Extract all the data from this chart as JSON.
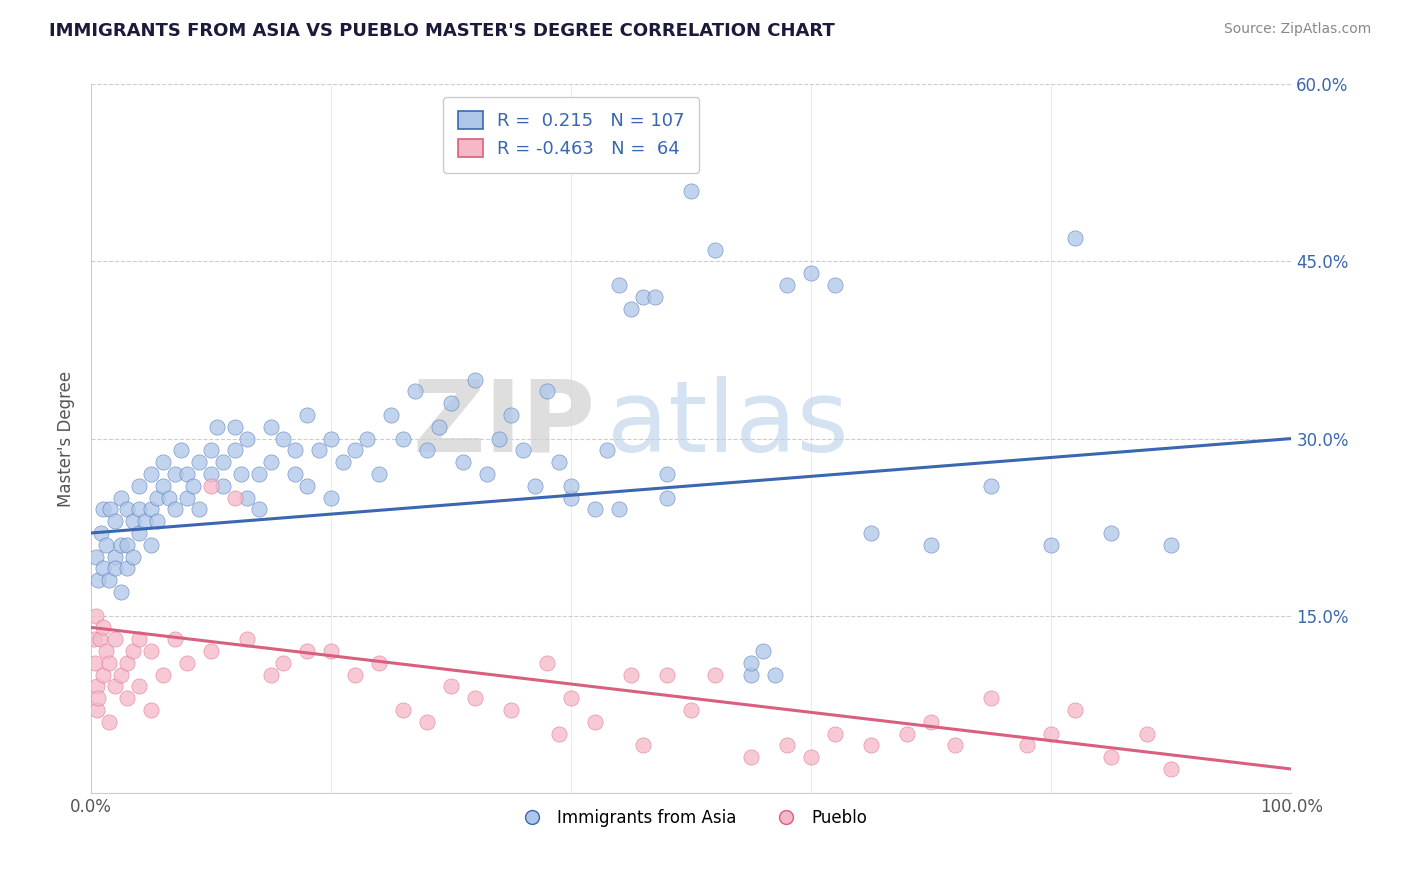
{
  "title": "IMMIGRANTS FROM ASIA VS PUEBLO MASTER'S DEGREE CORRELATION CHART",
  "source": "Source: ZipAtlas.com",
  "ylabel": "Master's Degree",
  "xlim": [
    0,
    100
  ],
  "ylim": [
    0,
    60
  ],
  "blue_r": 0.215,
  "blue_n": 107,
  "pink_r": -0.463,
  "pink_n": 64,
  "blue_color": "#aec6e8",
  "pink_color": "#f5b8c8",
  "blue_line_color": "#3a67b0",
  "pink_line_color": "#d95f7f",
  "blue_trend_start": 22.0,
  "blue_trend_end": 30.0,
  "pink_trend_start": 14.0,
  "pink_trend_end": 2.0,
  "blue_scatter": [
    [
      0.4,
      20
    ],
    [
      0.6,
      18
    ],
    [
      0.8,
      22
    ],
    [
      1.0,
      24
    ],
    [
      1.0,
      19
    ],
    [
      1.2,
      21
    ],
    [
      1.5,
      18
    ],
    [
      1.6,
      24
    ],
    [
      2.0,
      20
    ],
    [
      2.0,
      23
    ],
    [
      2.0,
      19
    ],
    [
      2.5,
      17
    ],
    [
      2.5,
      21
    ],
    [
      2.5,
      25
    ],
    [
      3.0,
      19
    ],
    [
      3.0,
      24
    ],
    [
      3.0,
      21
    ],
    [
      3.5,
      23
    ],
    [
      3.5,
      20
    ],
    [
      4.0,
      22
    ],
    [
      4.0,
      26
    ],
    [
      4.0,
      24
    ],
    [
      4.5,
      23
    ],
    [
      5.0,
      21
    ],
    [
      5.0,
      27
    ],
    [
      5.0,
      24
    ],
    [
      5.5,
      25
    ],
    [
      5.5,
      23
    ],
    [
      6.0,
      26
    ],
    [
      6.0,
      28
    ],
    [
      6.5,
      25
    ],
    [
      7.0,
      27
    ],
    [
      7.0,
      24
    ],
    [
      7.5,
      29
    ],
    [
      8.0,
      27
    ],
    [
      8.0,
      25
    ],
    [
      8.5,
      26
    ],
    [
      9.0,
      28
    ],
    [
      9.0,
      24
    ],
    [
      10.0,
      27
    ],
    [
      10.0,
      29
    ],
    [
      10.5,
      31
    ],
    [
      11.0,
      26
    ],
    [
      11.0,
      28
    ],
    [
      12.0,
      29
    ],
    [
      12.0,
      31
    ],
    [
      12.5,
      27
    ],
    [
      13.0,
      25
    ],
    [
      13.0,
      30
    ],
    [
      14.0,
      27
    ],
    [
      14.0,
      24
    ],
    [
      15.0,
      28
    ],
    [
      15.0,
      31
    ],
    [
      16.0,
      30
    ],
    [
      17.0,
      29
    ],
    [
      17.0,
      27
    ],
    [
      18.0,
      26
    ],
    [
      18.0,
      32
    ],
    [
      19.0,
      29
    ],
    [
      20.0,
      30
    ],
    [
      20.0,
      25
    ],
    [
      21.0,
      28
    ],
    [
      22.0,
      29
    ],
    [
      23.0,
      30
    ],
    [
      24.0,
      27
    ],
    [
      25.0,
      32
    ],
    [
      26.0,
      30
    ],
    [
      27.0,
      34
    ],
    [
      28.0,
      29
    ],
    [
      29.0,
      31
    ],
    [
      30.0,
      33
    ],
    [
      31.0,
      28
    ],
    [
      32.0,
      35
    ],
    [
      33.0,
      27
    ],
    [
      34.0,
      30
    ],
    [
      35.0,
      32
    ],
    [
      36.0,
      29
    ],
    [
      37.0,
      26
    ],
    [
      38.0,
      34
    ],
    [
      39.0,
      28
    ],
    [
      40.0,
      25
    ],
    [
      40.0,
      26
    ],
    [
      42.0,
      24
    ],
    [
      43.0,
      29
    ],
    [
      44.0,
      24
    ],
    [
      44.0,
      43
    ],
    [
      45.0,
      41
    ],
    [
      46.0,
      42
    ],
    [
      47.0,
      42
    ],
    [
      48.0,
      25
    ],
    [
      48.0,
      27
    ],
    [
      50.0,
      51
    ],
    [
      52.0,
      46
    ],
    [
      55.0,
      10
    ],
    [
      55.0,
      11
    ],
    [
      56.0,
      12
    ],
    [
      57.0,
      10
    ],
    [
      58.0,
      43
    ],
    [
      60.0,
      44
    ],
    [
      62.0,
      43
    ],
    [
      65.0,
      22
    ],
    [
      70.0,
      21
    ],
    [
      75.0,
      26
    ],
    [
      80.0,
      21
    ],
    [
      82.0,
      47
    ],
    [
      85.0,
      22
    ],
    [
      90.0,
      21
    ]
  ],
  "pink_scatter": [
    [
      0.2,
      13
    ],
    [
      0.3,
      11
    ],
    [
      0.4,
      15
    ],
    [
      0.5,
      9
    ],
    [
      0.5,
      7
    ],
    [
      0.6,
      8
    ],
    [
      0.7,
      13
    ],
    [
      1.0,
      10
    ],
    [
      1.0,
      14
    ],
    [
      1.2,
      12
    ],
    [
      1.5,
      11
    ],
    [
      1.5,
      6
    ],
    [
      2.0,
      9
    ],
    [
      2.0,
      13
    ],
    [
      2.5,
      10
    ],
    [
      3.0,
      11
    ],
    [
      3.0,
      8
    ],
    [
      3.5,
      12
    ],
    [
      4.0,
      13
    ],
    [
      4.0,
      9
    ],
    [
      5.0,
      12
    ],
    [
      5.0,
      7
    ],
    [
      6.0,
      10
    ],
    [
      7.0,
      13
    ],
    [
      8.0,
      11
    ],
    [
      10.0,
      12
    ],
    [
      10.0,
      26
    ],
    [
      12.0,
      25
    ],
    [
      13.0,
      13
    ],
    [
      15.0,
      10
    ],
    [
      16.0,
      11
    ],
    [
      18.0,
      12
    ],
    [
      20.0,
      12
    ],
    [
      22.0,
      10
    ],
    [
      24.0,
      11
    ],
    [
      26.0,
      7
    ],
    [
      28.0,
      6
    ],
    [
      30.0,
      9
    ],
    [
      32.0,
      8
    ],
    [
      35.0,
      7
    ],
    [
      38.0,
      11
    ],
    [
      39.0,
      5
    ],
    [
      40.0,
      8
    ],
    [
      42.0,
      6
    ],
    [
      45.0,
      10
    ],
    [
      46.0,
      4
    ],
    [
      48.0,
      10
    ],
    [
      50.0,
      7
    ],
    [
      52.0,
      10
    ],
    [
      55.0,
      3
    ],
    [
      58.0,
      4
    ],
    [
      60.0,
      3
    ],
    [
      62.0,
      5
    ],
    [
      65.0,
      4
    ],
    [
      68.0,
      5
    ],
    [
      70.0,
      6
    ],
    [
      72.0,
      4
    ],
    [
      75.0,
      8
    ],
    [
      78.0,
      4
    ],
    [
      80.0,
      5
    ],
    [
      82.0,
      7
    ],
    [
      85.0,
      3
    ],
    [
      88.0,
      5
    ],
    [
      90.0,
      2
    ]
  ],
  "watermark_zip": "ZIP",
  "watermark_atlas": "atlas",
  "background_color": "#ffffff",
  "grid_color": "#c8c8c8",
  "figsize": [
    14.06,
    8.92
  ],
  "dpi": 100
}
